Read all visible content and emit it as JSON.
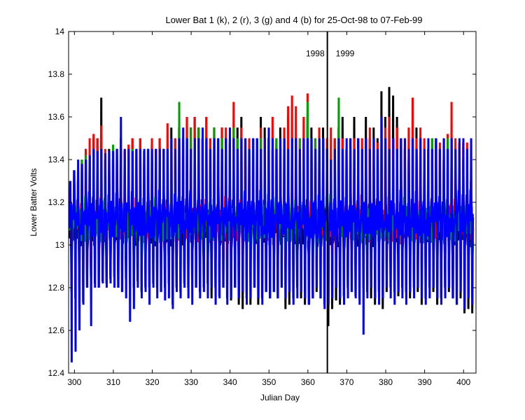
{
  "chart_data": {
    "type": "line",
    "title": "Lower Bat 1 (k), 2 (r), 3 (g) and 4 (b) for 25-Oct-98 to 07-Feb-99",
    "xlabel": "Julian Day",
    "ylabel": "Lower Batter Volts",
    "xlim": [
      298.5,
      403.2
    ],
    "ylim": [
      12.4,
      14
    ],
    "x_ticks": [
      300,
      310,
      320,
      330,
      340,
      350,
      360,
      370,
      380,
      390,
      400
    ],
    "y_ticks": [
      12.4,
      12.6,
      12.8,
      13,
      13.2,
      13.4,
      13.6,
      13.8,
      14
    ],
    "y_tick_labels": [
      "12.4",
      "12.6",
      "12.8",
      "13",
      "13.2",
      "13.4",
      "13.6",
      "13.8",
      "14"
    ],
    "grid": false,
    "legend": "none",
    "colors": {
      "k": "#000000",
      "r": "#ff0000",
      "g": "#00a000",
      "b": "#0000ff"
    },
    "annotations": [
      {
        "type": "vline",
        "x": 365
      },
      {
        "type": "text",
        "text": "1998",
        "x": 365,
        "y": 13.9,
        "anchor": "end"
      },
      {
        "type": "text",
        "text": "1999",
        "x": 365,
        "y": 13.9,
        "anchor": "start"
      }
    ],
    "series_summary": "Four daily charge/discharge cycling voltage traces (k, r, g, b); each day spikes to ~13.4-13.7 V and dips to ~12.7-12.9 V, baseline ~13.0-13.2 V.",
    "series": [
      {
        "key": "k",
        "color": "#000000",
        "daily_high": [
          13.3,
          13.35,
          13.3,
          13.4,
          13.45,
          13.4,
          13.5,
          13.5,
          13.69,
          13.4,
          13.45,
          13.4,
          13.45,
          13.5,
          13.44,
          13.45,
          13.5,
          13.45,
          13.5,
          13.44,
          13.45,
          13.47,
          13.44,
          13.5,
          13.45,
          13.4,
          13.55,
          13.5,
          13.55,
          13.5,
          13.6,
          13.55,
          13.6,
          13.55,
          13.5,
          13.6,
          13.5,
          13.55,
          13.5,
          13.55,
          13.5,
          13.4,
          13.5,
          13.55,
          13.6,
          13.5,
          13.45,
          13.5,
          13.5,
          13.6,
          13.55,
          13.5,
          13.45,
          13.5,
          13.55,
          13.45,
          13.6,
          13.5,
          13.5,
          13.4,
          13.5,
          13.6,
          13.55,
          13.5,
          13.45,
          13.55,
          13.45,
          13.35,
          13.5,
          13.55,
          13.6,
          13.45,
          13.5,
          13.6,
          13.5,
          13.4,
          13.6,
          13.5,
          13.55,
          13.5,
          13.72,
          13.6,
          13.74,
          13.7,
          13.6,
          13.5,
          13.45,
          13.4,
          13.5,
          13.55,
          13.45,
          13.4,
          13.45,
          13.4,
          13.5,
          13.45,
          13.4,
          13.45,
          13.4,
          13.4,
          13.45,
          13.4,
          13.3,
          13.3
        ],
        "daily_low": [
          12.78,
          12.75,
          12.8,
          12.73,
          12.8,
          12.85,
          12.82,
          12.8,
          12.83,
          12.82,
          12.84,
          12.85,
          12.8,
          12.78,
          12.84,
          12.82,
          12.8,
          12.83,
          12.78,
          12.8,
          12.8,
          12.82,
          12.8,
          12.78,
          12.8,
          12.82,
          12.72,
          12.8,
          12.78,
          12.82,
          12.8,
          12.85,
          12.8,
          12.78,
          12.8,
          12.82,
          12.75,
          12.8,
          12.76,
          12.8,
          12.75,
          12.74,
          12.8,
          12.72,
          12.7,
          12.75,
          12.72,
          12.8,
          12.72,
          12.75,
          12.78,
          12.75,
          12.78,
          12.75,
          12.8,
          12.7,
          12.72,
          12.75,
          12.8,
          12.75,
          12.72,
          12.72,
          12.75,
          12.78,
          12.75,
          12.72,
          12.62,
          12.7,
          12.74,
          12.72,
          12.76,
          12.8,
          12.78,
          12.76,
          12.75,
          12.8,
          12.78,
          12.75,
          12.72,
          12.78,
          12.7,
          12.78,
          12.8,
          12.78,
          12.76,
          12.8,
          12.78,
          12.75,
          12.8,
          12.78,
          12.72,
          12.75,
          12.8,
          12.78,
          12.72,
          12.75,
          12.8,
          12.78,
          12.75,
          12.72,
          12.75,
          12.68,
          12.7,
          12.68
        ],
        "base": 13.08
      },
      {
        "key": "r",
        "color": "#ff0000",
        "daily_high": [
          13.25,
          13.3,
          13.35,
          13.4,
          13.45,
          13.5,
          13.52,
          13.5,
          13.56,
          13.45,
          13.4,
          13.45,
          13.45,
          13.5,
          13.45,
          13.47,
          13.5,
          13.44,
          13.5,
          13.4,
          13.45,
          13.5,
          13.45,
          13.5,
          13.45,
          13.57,
          13.5,
          13.5,
          13.55,
          13.5,
          13.6,
          13.55,
          13.6,
          13.55,
          13.5,
          13.6,
          13.5,
          13.55,
          13.5,
          13.55,
          13.55,
          13.48,
          13.67,
          13.5,
          13.55,
          13.5,
          13.5,
          13.45,
          13.5,
          13.55,
          13.5,
          13.45,
          13.6,
          13.5,
          13.45,
          13.55,
          13.65,
          13.7,
          13.65,
          13.5,
          13.6,
          13.71,
          13.5,
          13.45,
          13.55,
          13.45,
          13.5,
          13.55,
          13.5,
          13.45,
          13.5,
          13.45,
          13.4,
          13.5,
          13.45,
          13.5,
          13.5,
          13.55,
          13.45,
          13.48,
          13.5,
          13.55,
          13.6,
          13.5,
          13.55,
          13.5,
          13.5,
          13.55,
          13.69,
          13.5,
          13.55,
          13.5,
          13.45,
          13.5,
          13.5,
          13.48,
          13.5,
          13.52,
          13.67,
          13.5,
          13.48,
          13.48,
          13.48,
          13.3
        ],
        "daily_low": [
          12.85,
          12.82,
          12.7,
          12.8,
          12.88,
          12.9,
          12.92,
          12.92,
          12.92,
          12.92,
          12.92,
          12.95,
          12.92,
          12.92,
          12.92,
          12.92,
          12.92,
          12.92,
          12.92,
          12.92,
          12.92,
          12.92,
          12.92,
          12.92,
          12.92,
          12.92,
          12.92,
          12.92,
          12.92,
          12.92,
          12.92,
          12.92,
          12.92,
          12.92,
          12.92,
          12.92,
          12.92,
          12.92,
          12.92,
          12.92,
          12.92,
          12.92,
          12.92,
          12.92,
          12.92,
          12.92,
          12.92,
          12.92,
          12.92,
          12.92,
          12.92,
          12.92,
          12.92,
          12.92,
          12.92,
          12.92,
          12.92,
          12.92,
          12.92,
          12.92,
          12.92,
          12.92,
          12.92,
          12.92,
          12.92,
          12.92,
          12.92,
          12.92,
          12.92,
          12.92,
          12.92,
          12.92,
          12.92,
          12.92,
          12.92,
          12.92,
          12.92,
          12.92,
          12.92,
          12.92,
          12.92,
          12.92,
          12.92,
          12.92,
          12.92,
          12.92,
          12.92,
          12.92,
          12.92,
          12.92,
          12.92,
          12.92,
          12.92,
          12.92,
          12.92,
          12.92,
          12.92,
          12.92,
          12.92,
          12.92,
          12.92,
          12.92,
          12.92,
          12.92
        ],
        "base": 13.1
      },
      {
        "key": "g",
        "color": "#00a000",
        "daily_high": [
          13.2,
          13.3,
          13.35,
          13.4,
          13.42,
          13.4,
          13.45,
          13.4,
          13.45,
          13.42,
          13.4,
          13.47,
          13.42,
          13.45,
          13.4,
          13.42,
          13.45,
          13.4,
          13.45,
          13.42,
          13.45,
          13.4,
          13.45,
          13.42,
          13.45,
          13.45,
          13.5,
          13.45,
          13.67,
          13.5,
          13.5,
          13.55,
          13.5,
          13.55,
          13.5,
          13.5,
          13.45,
          13.55,
          13.5,
          13.5,
          13.45,
          13.5,
          13.55,
          13.5,
          13.45,
          13.5,
          13.45,
          13.5,
          13.5,
          13.5,
          13.45,
          13.5,
          13.45,
          13.5,
          13.45,
          13.5,
          13.45,
          13.5,
          13.45,
          13.5,
          13.45,
          13.67,
          13.45,
          13.5,
          13.45,
          13.5,
          13.45,
          13.4,
          13.45,
          13.69,
          13.45,
          13.4,
          13.45,
          13.4,
          13.45,
          13.4,
          13.45,
          13.4,
          13.45,
          13.4,
          13.45,
          13.4,
          13.45,
          13.4,
          13.45,
          13.4,
          13.45,
          13.4,
          13.45,
          13.4,
          13.45,
          13.4,
          13.45,
          13.5,
          13.45,
          13.4,
          13.45,
          13.5,
          13.45,
          13.4,
          13.45,
          13.4,
          13.3,
          13.2
        ],
        "daily_low": [
          12.9,
          12.85,
          12.75,
          12.85,
          12.9,
          12.92,
          12.92,
          12.9,
          12.9,
          12.92,
          12.9,
          12.92,
          12.9,
          12.92,
          12.9,
          12.92,
          12.9,
          12.92,
          12.9,
          12.92,
          12.9,
          12.92,
          12.9,
          12.92,
          12.9,
          12.92,
          12.9,
          12.92,
          12.85,
          12.92,
          12.9,
          12.92,
          12.9,
          12.92,
          12.9,
          12.92,
          12.9,
          12.92,
          12.9,
          12.92,
          12.9,
          12.92,
          12.9,
          12.92,
          12.9,
          12.92,
          12.9,
          12.92,
          12.9,
          12.92,
          12.9,
          12.92,
          12.9,
          12.92,
          12.9,
          12.92,
          12.9,
          12.92,
          12.9,
          12.92,
          12.9,
          12.92,
          12.9,
          12.92,
          12.9,
          12.92,
          12.9,
          12.92,
          12.9,
          12.92,
          12.9,
          12.92,
          12.9,
          12.92,
          12.9,
          12.92,
          12.9,
          12.92,
          12.9,
          12.92,
          12.78,
          12.92,
          12.9,
          12.92,
          12.9,
          12.92,
          12.9,
          12.92,
          12.9,
          12.92,
          12.9,
          12.92,
          12.9,
          12.92,
          12.9,
          12.92,
          12.9,
          12.92,
          12.9,
          12.92,
          12.9,
          12.92,
          12.9,
          12.92
        ],
        "base": 13.1
      },
      {
        "key": "b",
        "color": "#0000ff",
        "daily_high": [
          13.3,
          13.35,
          13.4,
          13.38,
          13.4,
          13.42,
          13.45,
          13.44,
          13.45,
          13.43,
          13.44,
          13.44,
          13.45,
          13.6,
          13.45,
          13.45,
          13.44,
          13.45,
          13.45,
          13.45,
          13.45,
          13.45,
          13.45,
          13.45,
          13.45,
          13.45,
          13.5,
          13.45,
          13.5,
          13.55,
          13.5,
          13.45,
          13.5,
          13.5,
          13.55,
          13.5,
          13.45,
          13.5,
          13.5,
          13.45,
          13.5,
          13.55,
          13.5,
          13.45,
          13.5,
          13.5,
          13.45,
          13.5,
          13.5,
          13.45,
          13.5,
          13.55,
          13.5,
          13.45,
          13.5,
          13.5,
          13.45,
          13.5,
          13.5,
          13.45,
          13.5,
          13.5,
          13.5,
          13.45,
          13.5,
          13.5,
          13.45,
          13.4,
          13.45,
          13.5,
          13.45,
          13.5,
          13.5,
          13.45,
          13.5,
          13.45,
          13.5,
          13.45,
          13.5,
          13.45,
          13.6,
          13.5,
          13.45,
          13.5,
          13.45,
          13.5,
          13.5,
          13.45,
          13.5,
          13.45,
          13.5,
          13.45,
          13.5,
          13.45,
          13.5,
          13.45,
          13.5,
          13.45,
          13.5,
          13.45,
          13.5,
          13.5,
          13.45,
          13.5
        ],
        "daily_low": [
          12.45,
          12.5,
          12.6,
          12.72,
          12.8,
          12.62,
          12.8,
          12.8,
          12.82,
          12.8,
          12.82,
          12.8,
          12.8,
          12.78,
          12.75,
          12.64,
          12.7,
          12.8,
          12.75,
          12.78,
          12.72,
          12.8,
          12.75,
          12.78,
          12.74,
          12.75,
          12.7,
          12.78,
          12.75,
          12.8,
          12.75,
          12.72,
          12.8,
          12.75,
          12.78,
          12.75,
          12.8,
          12.72,
          12.75,
          12.8,
          12.72,
          12.75,
          12.8,
          12.75,
          12.78,
          12.72,
          12.75,
          12.8,
          12.75,
          12.72,
          12.78,
          12.75,
          12.78,
          12.75,
          12.8,
          12.75,
          12.78,
          12.72,
          12.75,
          12.78,
          12.75,
          12.72,
          12.75,
          12.8,
          12.75,
          12.7,
          12.72,
          12.75,
          12.8,
          12.75,
          12.72,
          12.75,
          12.78,
          12.75,
          12.72,
          12.58,
          12.75,
          12.8,
          12.75,
          12.72,
          12.75,
          12.8,
          12.75,
          12.72,
          12.78,
          12.75,
          12.72,
          12.78,
          12.75,
          12.8,
          12.75,
          12.72,
          12.75,
          12.8,
          12.75,
          12.72,
          12.75,
          12.8,
          12.75,
          12.72,
          12.78,
          12.7,
          12.75,
          12.72
        ],
        "base": 13.12
      }
    ]
  }
}
